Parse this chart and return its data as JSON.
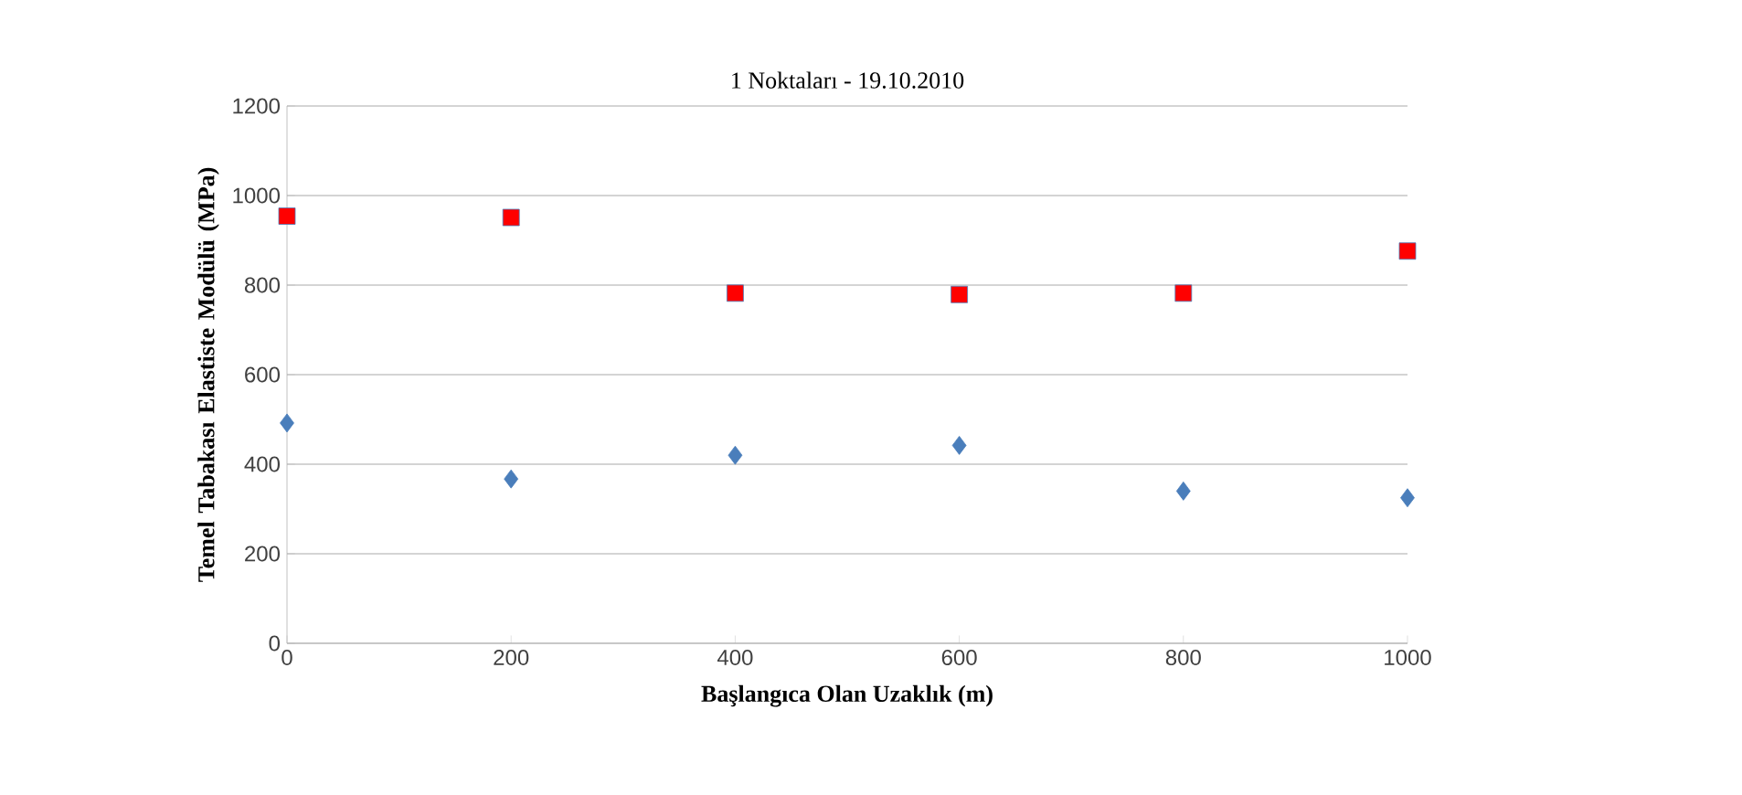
{
  "chart_data": {
    "type": "scatter",
    "title": "1 Noktaları - 19.10.2010",
    "xlabel": "Başlangıca Olan Uzaklık (m)",
    "ylabel": "Temel Tabakası Elastiste Modülü (MPa)",
    "x": [
      0,
      200,
      400,
      600,
      800,
      1000
    ],
    "series": [
      {
        "color": "#ff0000",
        "marker": "square",
        "values": [
          954,
          951,
          782,
          779,
          782,
          876
        ]
      },
      {
        "color": "#4a7ebb",
        "marker": "diamond",
        "values": [
          492,
          367,
          420,
          442,
          340,
          325
        ]
      }
    ],
    "xlim": [
      0,
      1000
    ],
    "xticks": [
      0,
      200,
      400,
      600,
      800,
      1000
    ],
    "ylim": [
      0,
      1200
    ],
    "yticks": [
      0,
      200,
      400,
      600,
      800,
      1000,
      1200
    ],
    "grid": "y"
  }
}
